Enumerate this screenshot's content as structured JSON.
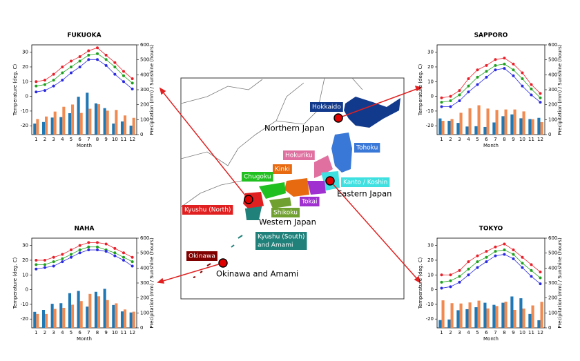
{
  "chart_data": [
    {
      "type": "combo",
      "title": "FUKUOKA",
      "ylabel": "Temperature (deg. C)",
      "y2label": "Precipitation (mm) / Sunshine (hours)",
      "xlabel": "Month",
      "categories": [
        1,
        2,
        3,
        4,
        5,
        6,
        7,
        8,
        9,
        10,
        11,
        12
      ],
      "ylim": [
        -26,
        35
      ],
      "yticks": [
        -20,
        -10,
        0,
        10,
        20,
        30
      ],
      "y2lim": [
        0,
        600
      ],
      "y2ticks": [
        0,
        100,
        200,
        300,
        400,
        500,
        600
      ],
      "series": [
        {
          "kind": "line",
          "color": "#e8202a",
          "values": [
            10,
            11,
            15,
            20,
            24,
            27,
            31,
            33,
            28,
            23,
            17,
            12
          ]
        },
        {
          "kind": "line",
          "color": "#20a020",
          "values": [
            7,
            8,
            11,
            16,
            20,
            24,
            28,
            29,
            25,
            20,
            14,
            9
          ]
        },
        {
          "kind": "line",
          "color": "#2a2ae0",
          "values": [
            3,
            4,
            7,
            11,
            16,
            20,
            25,
            25,
            21,
            15,
            10,
            5
          ]
        },
        {
          "kind": "bar",
          "axis": "y2",
          "color": "#1f77b4",
          "values": [
            74,
            84,
            114,
            117,
            143,
            253,
            280,
            209,
            177,
            74,
            88,
            60
          ]
        },
        {
          "kind": "bar",
          "axis": "y2",
          "color": "#f08a50",
          "values": [
            104,
            121,
            154,
            186,
            201,
            145,
            173,
            203,
            160,
            165,
            128,
            112
          ]
        }
      ]
    },
    {
      "type": "combo",
      "title": "SAPPORO",
      "ylabel": "Temperature (deg. C)",
      "y2label": "Precipitation (mm) / Sunshine (hours)",
      "xlabel": "Month",
      "categories": [
        1,
        2,
        3,
        4,
        5,
        6,
        7,
        8,
        9,
        10,
        11,
        12
      ],
      "ylim": [
        -26,
        35
      ],
      "yticks": [
        -20,
        -10,
        0,
        10,
        20,
        30
      ],
      "y2lim": [
        0,
        600
      ],
      "y2ticks": [
        0,
        100,
        200,
        300,
        400,
        500,
        600
      ],
      "series": [
        {
          "kind": "line",
          "color": "#e8202a",
          "values": [
            -1,
            0,
            4,
            12,
            18,
            21,
            25,
            26,
            22,
            16,
            8,
            2
          ]
        },
        {
          "kind": "line",
          "color": "#20a020",
          "values": [
            -4,
            -3,
            1,
            7,
            13,
            17,
            21,
            22,
            18,
            12,
            5,
            -1
          ]
        },
        {
          "kind": "line",
          "color": "#2a2ae0",
          "values": [
            -7,
            -7,
            -3,
            3,
            8,
            13,
            18,
            19,
            14,
            7,
            1,
            -4
          ]
        },
        {
          "kind": "bar",
          "axis": "y2",
          "color": "#1f77b4",
          "values": [
            108,
            92,
            78,
            54,
            56,
            51,
            81,
            123,
            135,
            109,
            104,
            112
          ]
        },
        {
          "kind": "bar",
          "axis": "y2",
          "color": "#f08a50",
          "values": [
            92,
            104,
            146,
            176,
            196,
            174,
            165,
            168,
            168,
            155,
            103,
            83
          ]
        }
      ]
    },
    {
      "type": "combo",
      "title": "NAHA",
      "ylabel": "Temperature (deg. C)",
      "y2label": "Precipitation (mm) / Sunshine (hours)",
      "xlabel": "Month",
      "categories": [
        1,
        2,
        3,
        4,
        5,
        6,
        7,
        8,
        9,
        10,
        11,
        12
      ],
      "ylim": [
        -26,
        35
      ],
      "yticks": [
        -20,
        -10,
        0,
        10,
        20,
        30
      ],
      "y2lim": [
        0,
        600
      ],
      "y2ticks": [
        0,
        100,
        200,
        300,
        400,
        500,
        600
      ],
      "series": [
        {
          "kind": "line",
          "color": "#e8202a",
          "values": [
            20,
            20,
            22,
            24,
            27,
            30,
            32,
            32,
            31,
            28,
            25,
            22
          ]
        },
        {
          "kind": "line",
          "color": "#20a020",
          "values": [
            17,
            17,
            19,
            21,
            24,
            27,
            29,
            29,
            27,
            25,
            22,
            19
          ]
        },
        {
          "kind": "line",
          "color": "#2a2ae0",
          "values": [
            14,
            15,
            16,
            19,
            22,
            25,
            27,
            27,
            26,
            23,
            20,
            16
          ]
        },
        {
          "kind": "bar",
          "axis": "y2",
          "color": "#1f77b4",
          "values": [
            107,
            120,
            161,
            165,
            232,
            247,
            142,
            241,
            261,
            153,
            110,
            103
          ]
        },
        {
          "kind": "bar",
          "axis": "y2",
          "color": "#f08a50",
          "values": [
            93,
            93,
            127,
            134,
            155,
            179,
            227,
            211,
            186,
            164,
            123,
            108
          ]
        }
      ]
    },
    {
      "type": "combo",
      "title": "TOKYO",
      "ylabel": "Temperature (deg. C)",
      "y2label": "Precipitation (mm) / Sunshine (hours)",
      "xlabel": "Month",
      "categories": [
        1,
        2,
        3,
        4,
        5,
        6,
        7,
        8,
        9,
        10,
        11,
        12
      ],
      "ylim": [
        -26,
        35
      ],
      "yticks": [
        -20,
        -10,
        0,
        10,
        20,
        30
      ],
      "y2lim": [
        0,
        600
      ],
      "y2ticks": [
        0,
        100,
        200,
        300,
        400,
        500,
        600
      ],
      "series": [
        {
          "kind": "line",
          "color": "#e8202a",
          "values": [
            10,
            10,
            13,
            19,
            23,
            26,
            29,
            31,
            27,
            22,
            17,
            12
          ]
        },
        {
          "kind": "line",
          "color": "#20a020",
          "values": [
            5,
            6,
            9,
            14,
            19,
            22,
            26,
            27,
            24,
            18,
            13,
            8
          ]
        },
        {
          "kind": "line",
          "color": "#2a2ae0",
          "values": [
            1,
            2,
            5,
            10,
            15,
            19,
            23,
            24,
            21,
            15,
            9,
            4
          ]
        },
        {
          "kind": "bar",
          "axis": "y2",
          "color": "#1f77b4",
          "values": [
            52,
            56,
            118,
            125,
            138,
            168,
            154,
            168,
            210,
            198,
            93,
            51
          ]
        },
        {
          "kind": "bar",
          "axis": "y2",
          "color": "#f08a50",
          "values": [
            184,
            165,
            163,
            170,
            182,
            130,
            146,
            175,
            120,
            129,
            150,
            174
          ]
        }
      ]
    }
  ],
  "map": {
    "regions": [
      {
        "lines": [
          "Hokkaido"
        ],
        "color": "#123a8c"
      },
      {
        "lines": [
          "Tohoku"
        ],
        "color": "#3a78d8"
      },
      {
        "lines": [
          "Hokuriku"
        ],
        "color": "#e070a0"
      },
      {
        "lines": [
          "Kinki"
        ],
        "color": "#e86a10"
      },
      {
        "lines": [
          "Chugoku"
        ],
        "color": "#20c020"
      },
      {
        "lines": [
          "Kanto / Koshin"
        ],
        "color": "#40e0e0"
      },
      {
        "lines": [
          "Tokai"
        ],
        "color": "#a030d0"
      },
      {
        "lines": [
          "Shikoku"
        ],
        "color": "#70a030"
      },
      {
        "lines": [
          "Kyushu (North)"
        ],
        "color": "#e02020"
      },
      {
        "lines": [
          "Kyushu (South)",
          "and Amami"
        ],
        "color": "#20807a"
      },
      {
        "lines": [
          "Okinawa"
        ],
        "color": "#800000"
      }
    ],
    "groups": [
      "Northern Japan",
      "Eastern Japan",
      "Western Japan",
      "Okinawa and Amami"
    ]
  }
}
